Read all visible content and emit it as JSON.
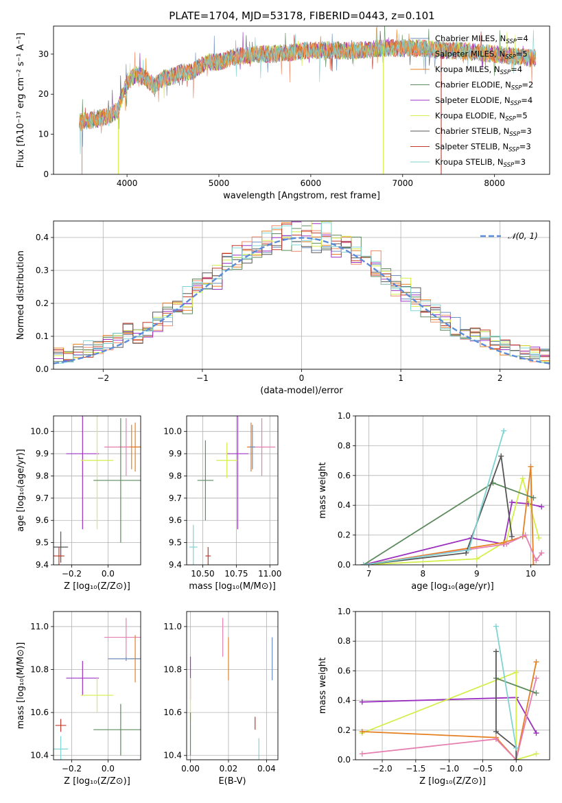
{
  "title": "PLATE=1704, MJD=53178, FIBERID=0443, z=0.101",
  "colors": {
    "chabrier_miles": "#6c8ebf",
    "salpeter_miles": "#ee8866",
    "kroupa_miles": "#e67e22",
    "chabrier_elodie": "#5d8a5d",
    "salpeter_elodie": "#9b30c0",
    "kroupa_elodie": "#d4ee4a",
    "chabrier_stelib": "#555555",
    "salpeter_stelib": "#c0392b",
    "kroupa_stelib": "#7fd3d3",
    "pink": "#e67fb0",
    "normal_curve": "#5b8bd9"
  },
  "chart_data": [
    {
      "id": "spectrum",
      "type": "line",
      "xlabel": "wavelength [Angstrom, rest frame]",
      "ylabel": "Flux [fλ10⁻¹⁷ erg cm⁻² s⁻¹ A⁻¹]",
      "xlim": [
        3200,
        8600
      ],
      "ylim": [
        0,
        37
      ],
      "xticks": [
        "4000",
        "5000",
        "6000",
        "7000",
        "8000"
      ],
      "yticks": [
        "0",
        "10",
        "20",
        "30"
      ],
      "legend_position": "top-right",
      "legend": [
        "Chabrier MILES, N_SSP=4",
        "Salpeter MILES, N_SSP=5",
        "Kroupa MILES, N_SSP=4",
        "Chabrier ELODIE, N_SSP=2",
        "Salpeter ELODIE, N_SSP=4",
        "Kroupa ELODIE, N_SSP=5",
        "Chabrier STELIB, N_SSP=3",
        "Salpeter STELIB, N_SSP=3",
        "Kroupa STELIB, N_SSP=3"
      ],
      "continuum": {
        "x": [
          3500,
          3600,
          3700,
          3800,
          3900,
          4000,
          4100,
          4200,
          4300,
          4400,
          4500,
          4600,
          4700,
          4800,
          4900,
          5000,
          5200,
          5400,
          5600,
          5800,
          6000,
          6200,
          6400,
          6600,
          6800,
          7000,
          7200,
          7400,
          7600,
          7800,
          8000,
          8200,
          8400
        ],
        "y": [
          13,
          13.5,
          14,
          14.5,
          16,
          23,
          25,
          24,
          22,
          24,
          24.5,
          25.5,
          25.5,
          27,
          28,
          28,
          29.5,
          30,
          30,
          30.5,
          31,
          31,
          30.8,
          31,
          31.5,
          31.5,
          31.5,
          31,
          30.8,
          30.5,
          30,
          29.5,
          29
        ]
      },
      "dropouts": [
        {
          "x": 3510,
          "y_top": 14
        },
        {
          "x": 3905,
          "y_top": 14
        },
        {
          "x": 6790,
          "y_top": 32
        },
        {
          "x": 7420,
          "y_top": 31
        }
      ]
    },
    {
      "id": "residuals",
      "type": "line",
      "xlabel": "(data-model)/error",
      "ylabel": "Normed distribution",
      "xlim": [
        -2.5,
        2.5
      ],
      "ylim": [
        0,
        0.45
      ],
      "xticks": [
        "−2",
        "−1",
        "0",
        "1",
        "2"
      ],
      "yticks": [
        "0.0",
        "0.1",
        "0.2",
        "0.3",
        "0.4"
      ],
      "grid": true,
      "legend_position": "top-right",
      "legend": [
        "𝒩(0, 1)"
      ],
      "normal": {
        "mu": 0,
        "sigma": 1
      },
      "bin_width": 0.1
    },
    {
      "id": "age_vs_Z",
      "type": "scatter",
      "xlabel": "Z [log₁₀(Z/Z⊙)]",
      "ylabel": "age  [log₁₀(age/yr)]",
      "xlim": [
        -0.3,
        0.18
      ],
      "ylim": [
        9.4,
        10.07
      ],
      "xticks": [
        "−0.2",
        "0.0"
      ],
      "yticks": [
        "9.4",
        "9.5",
        "9.6",
        "9.7",
        "9.8",
        "9.9",
        "10.0"
      ],
      "grid": true,
      "errorbars": [
        {
          "x": 0.13,
          "y": 9.93,
          "xerr": 0.07,
          "yerr": 0.1,
          "color": "orange"
        },
        {
          "x": 0.1,
          "y": 9.93,
          "xerr": 0.12,
          "yerr": 0.13,
          "color": "pink"
        },
        {
          "x": 0.15,
          "y": 9.93,
          "xerr": 0.03,
          "yerr": 0.11,
          "color": "orange"
        },
        {
          "x": -0.14,
          "y": 9.9,
          "xerr": 0.09,
          "yerr": 0.34,
          "color": "purple"
        },
        {
          "x": -0.06,
          "y": 9.87,
          "xerr": 0.09,
          "yerr": 0.31,
          "color": "lime"
        },
        {
          "x": 0.07,
          "y": 9.78,
          "xerr": 0.15,
          "yerr": 0.28,
          "color": "green"
        },
        {
          "x": -0.26,
          "y": 9.48,
          "xerr": 0.04,
          "yerr": 0.07,
          "color": "gray"
        },
        {
          "x": -0.27,
          "y": 9.44,
          "xerr": 0.03,
          "yerr": 0.04,
          "color": "red"
        }
      ]
    },
    {
      "id": "age_vs_mass",
      "type": "scatter",
      "xlabel": "mass [log₁₀(M/M⊙)]",
      "xlim": [
        10.38,
        11.06
      ],
      "ylim": [
        9.4,
        10.07
      ],
      "xticks": [
        "10.50",
        "10.75",
        "11.00"
      ],
      "yticks": [
        "9.4",
        "9.5",
        "9.6",
        "9.7",
        "9.8",
        "9.9",
        "10.0"
      ],
      "grid": true,
      "errorbars": [
        {
          "x": 10.94,
          "y": 9.93,
          "xerr": 0.1,
          "yerr": 0.13,
          "color": "pink"
        },
        {
          "x": 10.86,
          "y": 9.93,
          "xerr": 0.03,
          "yerr": 0.11,
          "color": "orange"
        },
        {
          "x": 10.87,
          "y": 9.93,
          "xerr": 0.02,
          "yerr": 0.1,
          "color": "blue"
        },
        {
          "x": 10.76,
          "y": 9.9,
          "xerr": 0.08,
          "yerr": 0.34,
          "color": "purple"
        },
        {
          "x": 10.68,
          "y": 9.87,
          "xerr": 0.08,
          "yerr": 0.08,
          "color": "lime"
        },
        {
          "x": 10.52,
          "y": 9.78,
          "xerr": 0.06,
          "yerr": 0.18,
          "color": "green"
        },
        {
          "x": 10.43,
          "y": 9.48,
          "xerr": 0.03,
          "yerr": 0.1,
          "color": "teal"
        },
        {
          "x": 10.54,
          "y": 9.44,
          "xerr": 0.02,
          "yerr": 0.04,
          "color": "red"
        }
      ]
    },
    {
      "id": "weight_vs_age",
      "type": "line",
      "xlabel": "age  [log₁₀(age/yr)]",
      "ylabel": "mass weight",
      "xlim": [
        6.75,
        10.35
      ],
      "ylim": [
        0,
        1
      ],
      "xticks": [
        "7",
        "8",
        "9",
        "10"
      ],
      "yticks": [
        "0.0",
        "0.2",
        "0.4",
        "0.6",
        "0.8",
        "1.0"
      ],
      "grid": true,
      "series": [
        {
          "color": "purple",
          "x": [
            6.9,
            8.9,
            9.5,
            9.65,
            9.95,
            10.2
          ],
          "y": [
            0.0,
            0.18,
            0.14,
            0.42,
            0.41,
            0.39
          ]
        },
        {
          "color": "lime",
          "x": [
            6.9,
            9.0,
            9.55,
            9.85,
            10.15
          ],
          "y": [
            0.0,
            0.04,
            0.16,
            0.58,
            0.18
          ]
        },
        {
          "color": "orange",
          "x": [
            6.9,
            9.5,
            9.85,
            10.0,
            10.05
          ],
          "y": [
            0.0,
            0.15,
            0.19,
            0.66,
            0.0
          ]
        },
        {
          "color": "pink",
          "x": [
            6.9,
            9.55,
            9.9,
            10.1,
            10.2
          ],
          "y": [
            0.0,
            0.14,
            0.2,
            0.03,
            0.08
          ]
        },
        {
          "color": "green",
          "x": [
            6.9,
            9.3,
            10.05
          ],
          "y": [
            0.0,
            0.55,
            0.45
          ]
        },
        {
          "color": "gray",
          "x": [
            6.9,
            8.8,
            9.45,
            9.65
          ],
          "y": [
            0.0,
            0.08,
            0.73,
            0.19
          ]
        },
        {
          "color": "teal",
          "x": [
            6.9,
            8.85,
            9.5
          ],
          "y": [
            0.0,
            0.1,
            0.9
          ]
        }
      ]
    },
    {
      "id": "mass_vs_Z",
      "type": "scatter",
      "xlabel": "Z [log₁₀(Z/Z⊙)]",
      "ylabel": "mass [log₁₀(M/M⊙)]",
      "xlim": [
        -0.3,
        0.18
      ],
      "ylim": [
        10.38,
        11.07
      ],
      "xticks": [
        "−0.2",
        "0.0"
      ],
      "yticks": [
        "10.4",
        "10.6",
        "10.8",
        "11.0"
      ],
      "grid": true,
      "errorbars": [
        {
          "x": 0.1,
          "y": 10.95,
          "xerr": 0.12,
          "yerr": 0.09,
          "color": "pink"
        },
        {
          "x": 0.15,
          "y": 10.85,
          "xerr": 0.03,
          "yerr": 0.11,
          "color": "orange"
        },
        {
          "x": 0.1,
          "y": 10.85,
          "xerr": 0.1,
          "yerr": 0.01,
          "color": "blue"
        },
        {
          "x": -0.14,
          "y": 10.76,
          "xerr": 0.09,
          "yerr": 0.08,
          "color": "purple"
        },
        {
          "x": -0.06,
          "y": 10.68,
          "xerr": 0.09,
          "yerr": 0.08,
          "color": "lime"
        },
        {
          "x": 0.07,
          "y": 10.52,
          "xerr": 0.15,
          "yerr": 0.12,
          "color": "green"
        },
        {
          "x": -0.26,
          "y": 10.43,
          "xerr": 0.04,
          "yerr": 0.06,
          "color": "teal"
        },
        {
          "x": -0.26,
          "y": 10.54,
          "xerr": 0.03,
          "yerr": 0.03,
          "color": "red"
        }
      ]
    },
    {
      "id": "mass_vs_ebv",
      "type": "scatter",
      "xlabel": "E(B-V)",
      "xlim": [
        -0.002,
        0.046
      ],
      "ylim": [
        10.38,
        11.07
      ],
      "xticks": [
        "0.00",
        "0.02",
        "0.04"
      ],
      "yticks": [
        "10.4",
        "10.6",
        "10.8",
        "11.0"
      ],
      "grid": true,
      "errorbars": [
        {
          "x": 0.017,
          "y": 10.95,
          "yerr": 0.09,
          "color": "pink"
        },
        {
          "x": 0.02,
          "y": 10.85,
          "yerr": 0.1,
          "color": "orange"
        },
        {
          "x": 0.043,
          "y": 10.85,
          "yerr": 0.1,
          "color": "blue"
        },
        {
          "x": 0.0,
          "y": 10.76,
          "yerr": 0.1,
          "color": "purple"
        },
        {
          "x": 0.0,
          "y": 10.66,
          "yerr": 0.1,
          "color": "lime"
        },
        {
          "x": 0.0,
          "y": 10.5,
          "yerr": 0.1,
          "color": "green"
        },
        {
          "x": 0.036,
          "y": 10.43,
          "yerr": 0.05,
          "color": "teal"
        },
        {
          "x": 0.034,
          "y": 10.55,
          "yerr": 0.03,
          "color": "red"
        }
      ]
    },
    {
      "id": "weight_vs_Z",
      "type": "line",
      "xlabel": "Z [log₁₀(Z/Z⊙)]",
      "ylabel": "mass weight",
      "xlim": [
        -2.4,
        0.5
      ],
      "ylim": [
        0,
        1
      ],
      "xticks": [
        "−2.0",
        "−1.5",
        "−1.0",
        "−0.5",
        "0.0"
      ],
      "yticks": [
        "0.0",
        "0.2",
        "0.4",
        "0.6",
        "0.8",
        "1.0"
      ],
      "grid": true,
      "series": [
        {
          "color": "purple",
          "x": [
            -2.3,
            0.0,
            0.3
          ],
          "y": [
            0.39,
            0.42,
            0.18
          ]
        },
        {
          "color": "lime",
          "x": [
            -2.3,
            0.0,
            0.0,
            0.3
          ],
          "y": [
            0.18,
            0.59,
            0.0,
            0.04
          ]
        },
        {
          "color": "orange",
          "x": [
            -2.3,
            -0.3,
            0.0,
            0.3
          ],
          "y": [
            0.19,
            0.15,
            0.0,
            0.66
          ]
        },
        {
          "color": "pink",
          "x": [
            -2.3,
            -0.3,
            0.0,
            0.3
          ],
          "y": [
            0.04,
            0.14,
            0.0,
            0.55
          ]
        },
        {
          "color": "green",
          "x": [
            -0.3,
            0.3
          ],
          "y": [
            0.55,
            0.45
          ]
        },
        {
          "color": "gray",
          "x": [
            -0.3,
            -0.3,
            0.0,
            0.0
          ],
          "y": [
            0.73,
            0.19,
            0.08,
            0.0
          ]
        },
        {
          "color": "teal",
          "x": [
            -0.3,
            0.0
          ],
          "y": [
            0.9,
            0.08
          ]
        }
      ]
    }
  ]
}
